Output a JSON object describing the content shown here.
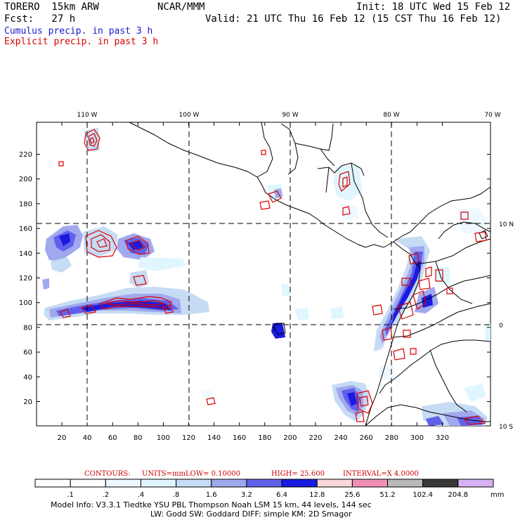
{
  "header": {
    "model": "TORERO  15km ARW",
    "org": "NCAR/MMM",
    "init": "Init: 18 UTC Wed 15 Feb 12",
    "fcst": "Fcst:   27 h",
    "valid": "Valid: 21 UTC Thu 16 Feb 12 (15 CST Thu 16 Feb 12)"
  },
  "legend": {
    "cumulus": "Cumulus precip. in past 3 h",
    "explicit": "Explicit precip. in past 3 h"
  },
  "colors": {
    "cumulus": "#1a1acc",
    "explicit": "#dd0000",
    "contour_text": "#cc0000"
  },
  "map": {
    "lon_labels": [
      "110 W",
      "100 W",
      "90 W",
      "80 W",
      "70 W"
    ],
    "lat_labels": [
      "10 N",
      "0",
      "10 S"
    ],
    "x_ticks": [
      "20",
      "40",
      "60",
      "80",
      "100",
      "120",
      "140",
      "160",
      "180",
      "200",
      "220",
      "240",
      "260",
      "280",
      "300",
      "320"
    ],
    "y_ticks": [
      "220",
      "200",
      "180",
      "160",
      "140",
      "120",
      "100",
      "80",
      "60",
      "40",
      "20"
    ]
  },
  "contours": {
    "label": "CONTOURS:",
    "units": "UNITS=mm",
    "low": "LOW= 0.10000",
    "high": "HIGH=  25.600",
    "interval": "INTERVAL=X  4.0000"
  },
  "colorbar": {
    "labels": [
      ".1",
      ".2",
      ".4",
      ".8",
      "1.6",
      "3.2",
      "6.4",
      "12.8",
      "25.6",
      "51.2",
      "102.4",
      "204.8"
    ],
    "unit": "mm",
    "colors": [
      "#ffffff",
      "#ffffff",
      "#eef8ff",
      "#dff6ff",
      "#c6dcf4",
      "#a0a8ee",
      "#6060ea",
      "#1a1ae0",
      "#f8d8d8",
      "#f090b8",
      "#b8b8b8",
      "#383838",
      "#d8b0f4"
    ]
  },
  "footer": {
    "line1": "Model Info: V3.3.1    Tiedtke YSU PBL  Thompson    Noah LSM  15 km,   44 levels,  144 sec",
    "line2": "LW: Godd SW: Goddard DIFF: simple KM: 2D Smagor"
  }
}
